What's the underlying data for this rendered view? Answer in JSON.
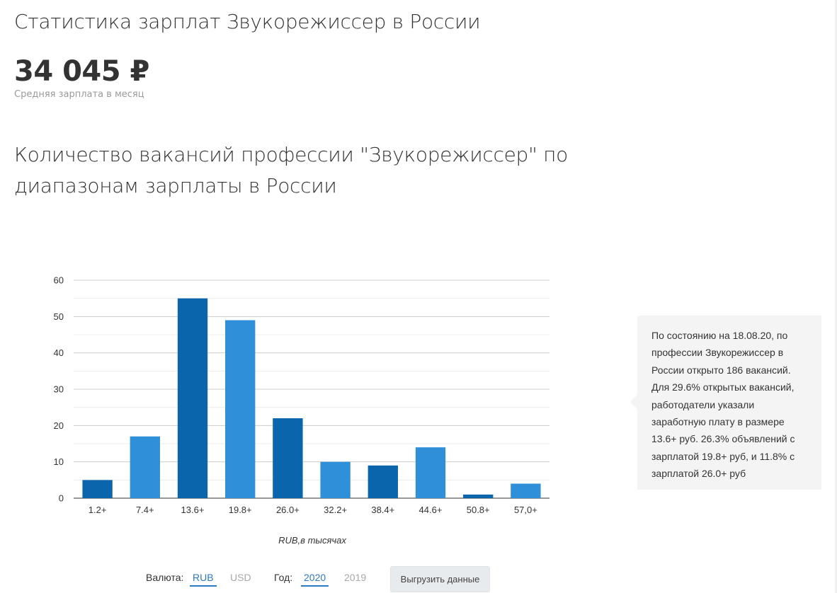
{
  "header": {
    "title": "Статистика зарплат Звукорежиссер в России",
    "avg_salary": "34 045 ₽",
    "avg_salary_label": "Средняя зарплата в месяц"
  },
  "chart_section": {
    "title": "Количество вакансий профессии \"Звукорежиссер\" по диапазонам зарплаты в России"
  },
  "chart_data": {
    "type": "bar",
    "categories": [
      "1.2+",
      "7.4+",
      "13.6+",
      "19.8+",
      "26.0+",
      "32.2+",
      "38.4+",
      "44.6+",
      "50.8+",
      "57,0+"
    ],
    "values": [
      5,
      17,
      55,
      49,
      22,
      10,
      9,
      14,
      1,
      4
    ],
    "xlabel": "RUB,в тысячах",
    "ylabel": "",
    "ylim": [
      0,
      60
    ],
    "yticks": [
      0,
      10,
      20,
      30,
      40,
      50,
      60
    ],
    "grid": true,
    "colors": {
      "dark": "#0b65ad",
      "light": "#2f8fd8"
    }
  },
  "info": {
    "text": "По состоянию на 18.08.20, по профессии Звукорежиссер в России открыто 186 вакансий. Для 29.6% открытых вакансий, работодатели указали заработную плату в размере 13.6+ руб. 26.3% объявлений с зарплатой 19.8+ руб, и 11.8% с зарплатой 26.0+ руб"
  },
  "controls": {
    "currency_label": "Валюта:",
    "currency_active": "RUB",
    "currency_other": "USD",
    "year_label": "Год:",
    "year_active": "2020",
    "year_other": "2019",
    "export_button": "Выгрузить данные"
  }
}
